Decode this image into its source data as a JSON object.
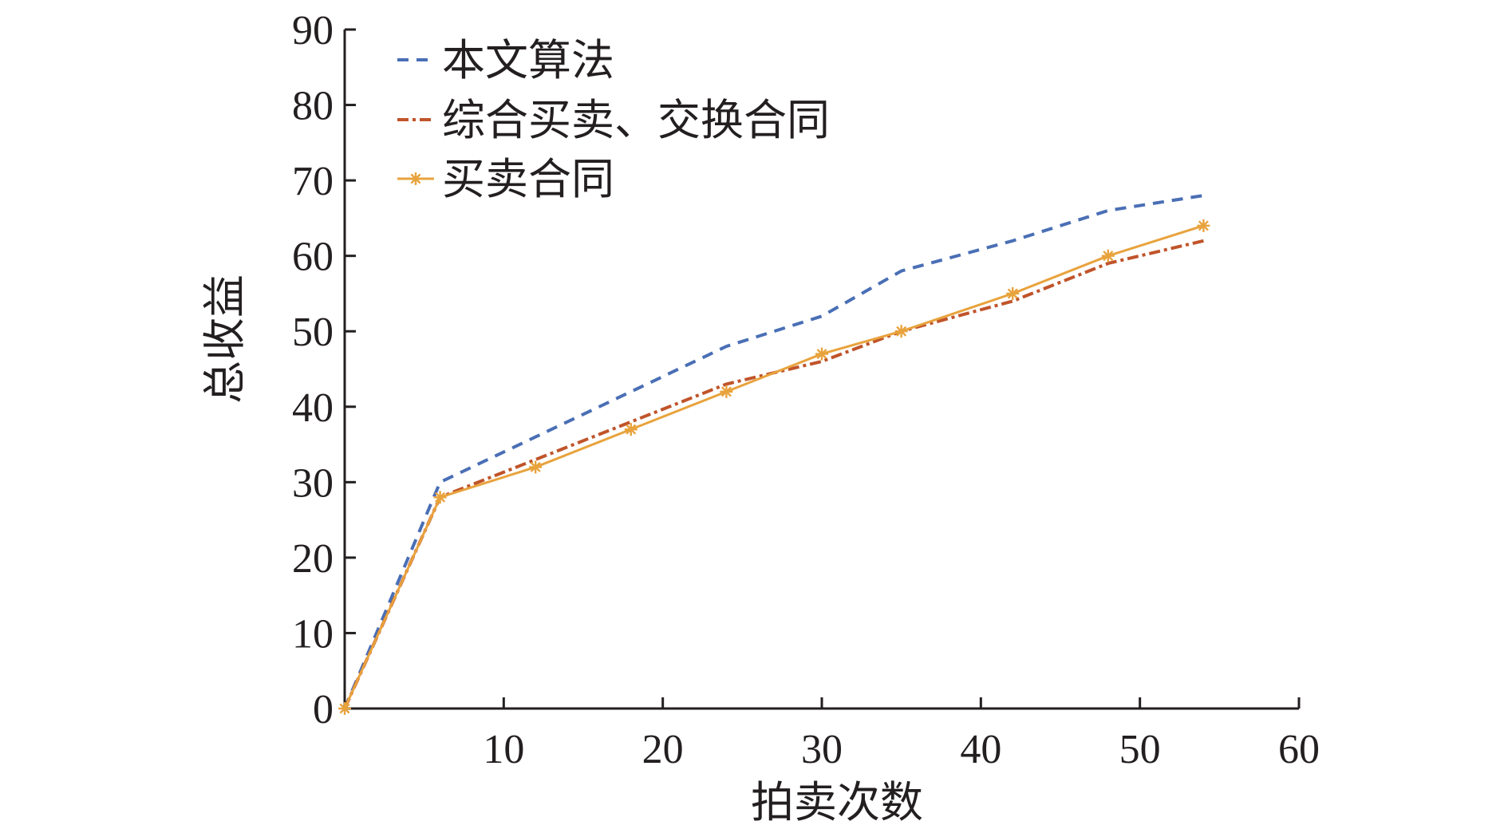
{
  "chart_data": {
    "type": "line",
    "xlabel": "拍卖次数",
    "ylabel": "总收益",
    "xlim": [
      0,
      60
    ],
    "ylim": [
      0,
      90
    ],
    "x_ticks": [
      10,
      20,
      30,
      40,
      50,
      60
    ],
    "x_tick_labels": [
      "10",
      "20",
      "30",
      "40",
      "50",
      "60"
    ],
    "y_ticks": [
      0,
      10,
      20,
      30,
      40,
      50,
      60,
      70,
      80,
      90
    ],
    "y_tick_labels": [
      "0",
      "10",
      "20",
      "30",
      "40",
      "50",
      "60",
      "70",
      "80",
      "90"
    ],
    "grid": false,
    "legend_position": "top-left",
    "series": [
      {
        "name": "本文算法",
        "color": "#4a6fb5",
        "style": "dashed",
        "marker": "none",
        "x": [
          0,
          6,
          12,
          18,
          24,
          30,
          35,
          42,
          48,
          54
        ],
        "y": [
          0,
          30,
          36,
          42,
          48,
          52,
          58,
          62,
          66,
          68
        ]
      },
      {
        "name": "综合买卖、交换合同",
        "color": "#c0542a",
        "style": "dashdot",
        "marker": "none",
        "x": [
          0,
          6,
          12,
          18,
          24,
          30,
          35,
          42,
          48,
          54
        ],
        "y": [
          0,
          28,
          33,
          38,
          43,
          46,
          50,
          54,
          59,
          62
        ]
      },
      {
        "name": "买卖合同",
        "color": "#e8a33d",
        "style": "solid",
        "marker": "asterisk",
        "x": [
          0,
          6,
          12,
          18,
          24,
          30,
          35,
          42,
          48,
          54
        ],
        "y": [
          0,
          28,
          32,
          37,
          42,
          47,
          50,
          55,
          60,
          64
        ]
      }
    ]
  }
}
